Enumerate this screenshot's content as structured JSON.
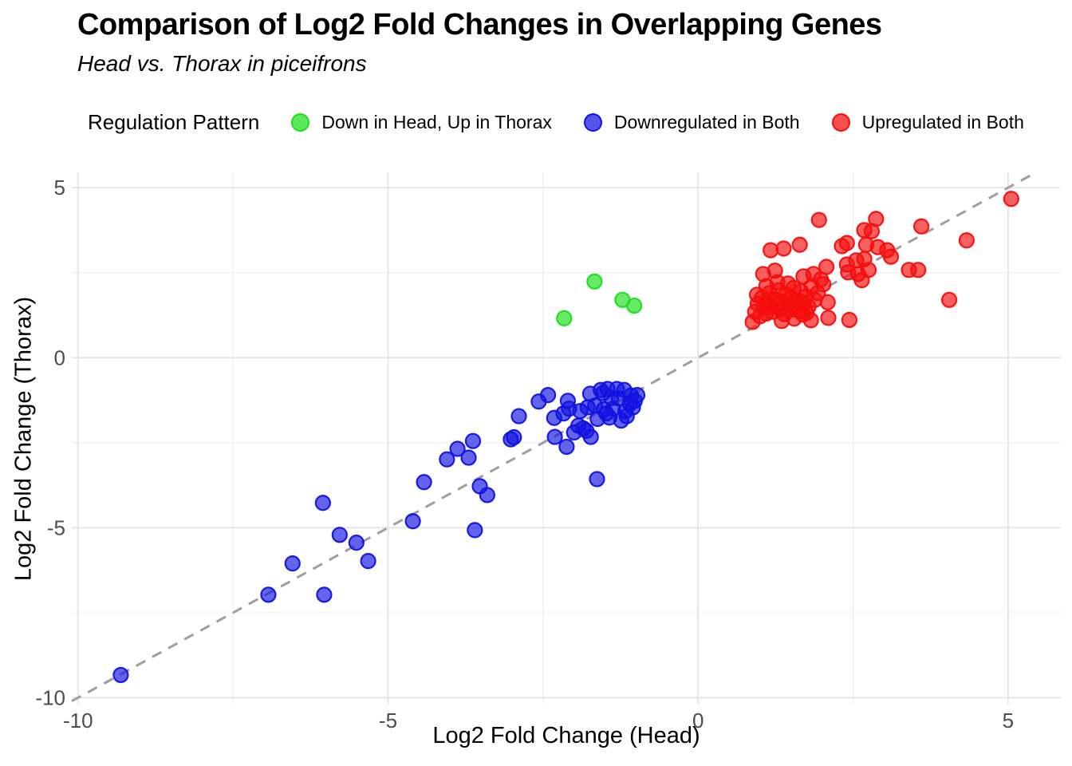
{
  "header": {
    "title": "Comparison of Log2 Fold Changes in Overlapping Genes",
    "subtitle": "Head vs. Thorax in piceifrons"
  },
  "legend": {
    "title": "Regulation Pattern",
    "items": [
      {
        "label": "Down in Head, Up in Thorax",
        "color": "#1ADF1A"
      },
      {
        "label": "Downregulated in Both",
        "color": "#1212E0"
      },
      {
        "label": "Upregulated in Both",
        "color": "#F50D0D"
      }
    ]
  },
  "chart_data": {
    "type": "scatter",
    "title": "Comparison of Log2 Fold Changes in Overlapping Genes",
    "subtitle": "Head vs. Thorax in piceifrons",
    "xlabel": "Log2 Fold Change (Head)",
    "ylabel": "Log2 Fold Change (Thorax)",
    "xlim": [
      -10.1,
      5.85
    ],
    "ylim": [
      -10.2,
      5.45
    ],
    "x_ticks": [
      -10,
      -5,
      0,
      5
    ],
    "y_ticks": [
      5,
      0,
      -5,
      -10
    ],
    "x_minor_ticks": [
      -7.5,
      -2.5,
      2.5
    ],
    "y_minor_ticks": [
      2.5,
      -2.5,
      -7.5
    ],
    "grid": {
      "major_color": "#E3E3E3",
      "minor_color": "#EDEDED",
      "background": "#FFFFFF"
    },
    "tick_label_color": "#4D4D4D",
    "identity_line": {
      "type": "dashed",
      "color": "#9E9E9E",
      "equation": "y = x"
    },
    "point_style": {
      "radius": 9,
      "fill_opacity": 0.66,
      "stroke_opacity": 0.95,
      "stroke_width": 2.2
    },
    "legend_position": "top",
    "series": [
      {
        "name": "Down in Head, Up in Thorax",
        "color": "#1ADF1A",
        "points": [
          [
            -2.16,
            1.16
          ],
          [
            -1.67,
            2.24
          ],
          [
            -1.22,
            1.7
          ],
          [
            -1.03,
            1.53
          ]
        ]
      },
      {
        "name": "Downregulated in Both",
        "color": "#1212E0",
        "points": [
          [
            -9.31,
            -9.33
          ],
          [
            -6.93,
            -6.97
          ],
          [
            -6.03,
            -6.97
          ],
          [
            -6.54,
            -6.05
          ],
          [
            -5.32,
            -5.98
          ],
          [
            -5.51,
            -5.44
          ],
          [
            -5.78,
            -5.21
          ],
          [
            -3.6,
            -5.07
          ],
          [
            -6.05,
            -4.27
          ],
          [
            -4.6,
            -4.81
          ],
          [
            -4.42,
            -3.66
          ],
          [
            -3.52,
            -3.78
          ],
          [
            -3.4,
            -4.04
          ],
          [
            -1.63,
            -3.57
          ],
          [
            -4.05,
            -2.99
          ],
          [
            -3.88,
            -2.68
          ],
          [
            -3.7,
            -2.94
          ],
          [
            -3.63,
            -2.45
          ],
          [
            -3.02,
            -2.4
          ],
          [
            -2.97,
            -2.34
          ],
          [
            -2.89,
            -1.72
          ],
          [
            -2.57,
            -1.29
          ],
          [
            -2.42,
            -1.1
          ],
          [
            -2.32,
            -1.77
          ],
          [
            -2.31,
            -2.33
          ],
          [
            -2.17,
            -1.64
          ],
          [
            -2.12,
            -2.62
          ],
          [
            -2.1,
            -1.27
          ],
          [
            -2.08,
            -1.5
          ],
          [
            -2.0,
            -2.2
          ],
          [
            -1.93,
            -2.0
          ],
          [
            -1.9,
            -1.57
          ],
          [
            -1.85,
            -2.08
          ],
          [
            -1.8,
            -2.15
          ],
          [
            -1.78,
            -1.46
          ],
          [
            -1.74,
            -1.06
          ],
          [
            -1.73,
            -2.33
          ],
          [
            -1.66,
            -1.41
          ],
          [
            -1.62,
            -1.8
          ],
          [
            -1.57,
            -0.95
          ],
          [
            -1.53,
            -1.04
          ],
          [
            -1.52,
            -1.52
          ],
          [
            -1.48,
            -1.64
          ],
          [
            -1.46,
            -0.92
          ],
          [
            -1.43,
            -1.76
          ],
          [
            -1.4,
            -1.18
          ],
          [
            -1.37,
            -1.5
          ],
          [
            -1.31,
            -0.92
          ],
          [
            -1.28,
            -1.2
          ],
          [
            -1.24,
            -1.85
          ],
          [
            -1.19,
            -0.95
          ],
          [
            -1.17,
            -1.57
          ],
          [
            -1.15,
            -1.72
          ],
          [
            -1.1,
            -1.35
          ],
          [
            -1.08,
            -1.11
          ],
          [
            -1.05,
            -1.46
          ],
          [
            -1.02,
            -1.27
          ],
          [
            -0.98,
            -1.1
          ]
        ]
      },
      {
        "name": "Upregulated in Both",
        "color": "#F50D0D",
        "points": [
          [
            5.05,
            4.67
          ],
          [
            2.87,
            4.08
          ],
          [
            1.95,
            4.05
          ],
          [
            3.6,
            3.86
          ],
          [
            2.8,
            3.72
          ],
          [
            2.68,
            3.75
          ],
          [
            4.33,
            3.45
          ],
          [
            4.05,
            1.7
          ],
          [
            2.44,
            1.11
          ],
          [
            1.17,
            3.16
          ],
          [
            1.38,
            3.21
          ],
          [
            1.64,
            3.32
          ],
          [
            2.32,
            3.28
          ],
          [
            2.4,
            3.37
          ],
          [
            2.71,
            3.32
          ],
          [
            2.9,
            3.25
          ],
          [
            3.05,
            3.16
          ],
          [
            3.11,
            2.97
          ],
          [
            2.68,
            2.9
          ],
          [
            2.55,
            2.86
          ],
          [
            2.4,
            2.74
          ],
          [
            3.4,
            2.58
          ],
          [
            3.55,
            2.58
          ],
          [
            2.75,
            2.58
          ],
          [
            2.58,
            2.46
          ],
          [
            2.42,
            2.51
          ],
          [
            2.64,
            2.28
          ],
          [
            2.1,
            1.17
          ],
          [
            1.82,
            1.1
          ],
          [
            2.09,
            1.63
          ],
          [
            1.05,
            2.46
          ],
          [
            1.24,
            2.56
          ],
          [
            1.7,
            2.39
          ],
          [
            1.86,
            2.46
          ],
          [
            2.07,
            2.67
          ],
          [
            2.02,
            2.16
          ],
          [
            1.69,
            1.27
          ],
          [
            0.88,
            1.05
          ],
          [
            0.92,
            1.35
          ],
          [
            0.96,
            1.58
          ],
          [
            1.0,
            1.22
          ],
          [
            1.03,
            1.76
          ],
          [
            1.06,
            1.45
          ],
          [
            1.1,
            1.3
          ],
          [
            1.12,
            1.62
          ],
          [
            1.15,
            1.9
          ],
          [
            1.18,
            1.48
          ],
          [
            1.21,
            1.35
          ],
          [
            1.24,
            1.72
          ],
          [
            1.27,
            1.55
          ],
          [
            1.3,
            1.98
          ],
          [
            1.33,
            1.42
          ],
          [
            1.36,
            1.65
          ],
          [
            1.39,
            1.28
          ],
          [
            1.42,
            1.85
          ],
          [
            1.45,
            1.58
          ],
          [
            1.48,
            1.4
          ],
          [
            1.51,
            1.75
          ],
          [
            1.54,
            2.05
          ],
          [
            1.57,
            1.52
          ],
          [
            1.6,
            1.68
          ],
          [
            1.63,
            1.38
          ],
          [
            1.66,
            1.95
          ],
          [
            1.7,
            1.6
          ],
          [
            1.74,
            1.8
          ],
          [
            1.78,
            1.5
          ],
          [
            1.83,
            2.1
          ],
          [
            1.88,
            1.7
          ],
          [
            1.93,
            1.9
          ],
          [
            1.98,
            2.3
          ],
          [
            1.45,
            2.18
          ],
          [
            1.28,
            2.22
          ],
          [
            1.1,
            2.1
          ],
          [
            0.95,
            1.85
          ],
          [
            1.55,
            1.15
          ],
          [
            1.35,
            1.08
          ],
          [
            1.75,
            1.32
          ]
        ]
      }
    ]
  }
}
